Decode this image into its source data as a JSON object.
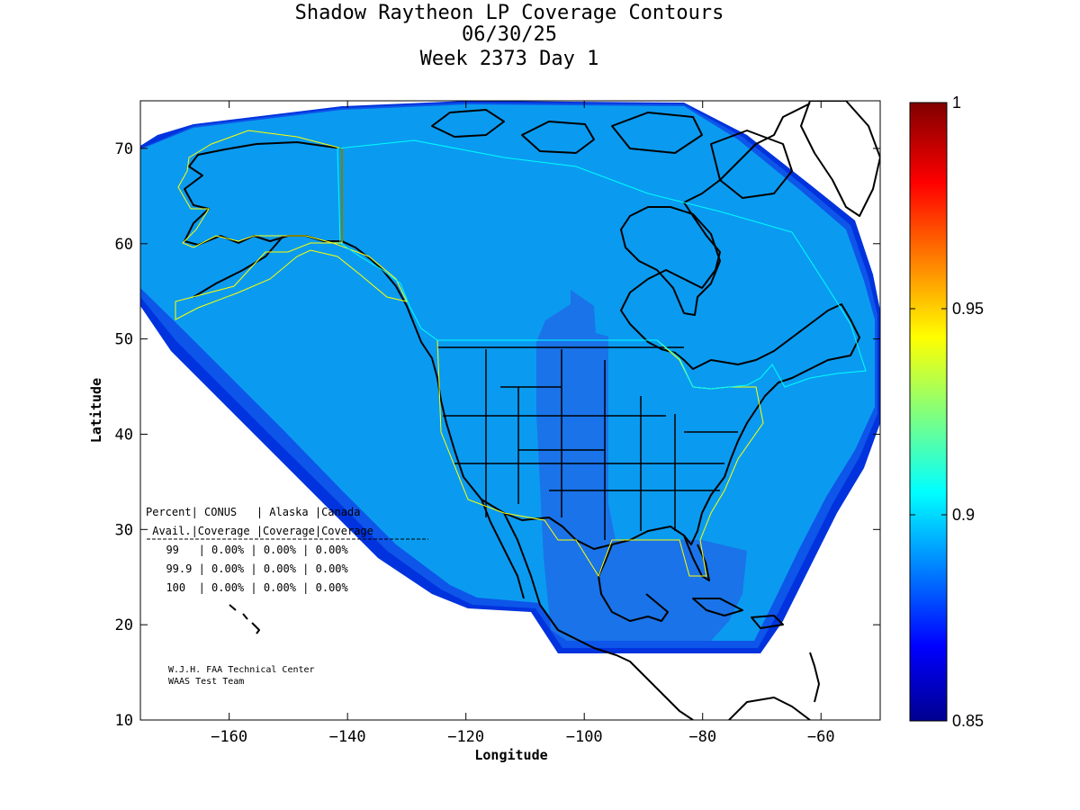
{
  "title": {
    "line1": "Shadow Raytheon LP Coverage Contours",
    "line2": "06/30/25",
    "line3": "Week 2373 Day 1"
  },
  "axes": {
    "xlabel": "Longitude",
    "ylabel": "Latitude",
    "xlim": [
      -175,
      -50
    ],
    "ylim": [
      10,
      75
    ],
    "xticks": [
      -160,
      -140,
      -120,
      -100,
      -80,
      -60
    ],
    "yticks": [
      10,
      20,
      30,
      40,
      50,
      60,
      70
    ]
  },
  "colorbar": {
    "range": [
      0.85,
      1
    ],
    "ticks": [
      0.85,
      0.9,
      0.95,
      1
    ],
    "labels": [
      "0.85",
      "0.9",
      "0.95",
      "1"
    ],
    "colormap": "jet"
  },
  "coverage_colors": {
    "outer_band_dark": "#0033dd",
    "band_mid": "#0e55ea",
    "band_core": "#1a73e8",
    "main_coverage": "#0a9bf0",
    "service_boundary": "#ffff00",
    "canada_boundary": "#00ffff"
  },
  "table": {
    "header1": "Percent| CONUS   | Alaska |Canada",
    "header2": " Avail.|Coverage |Coverage|Coverage",
    "rows": [
      "  99   | 0.00% | 0.00% | 0.00%",
      "  99.9 | 0.00% | 0.00% | 0.00%",
      "  100  | 0.00% | 0.00% | 0.00%"
    ]
  },
  "credit": {
    "line1": "W.J.H. FAA Technical Center",
    "line2": "WAAS Test Team"
  }
}
